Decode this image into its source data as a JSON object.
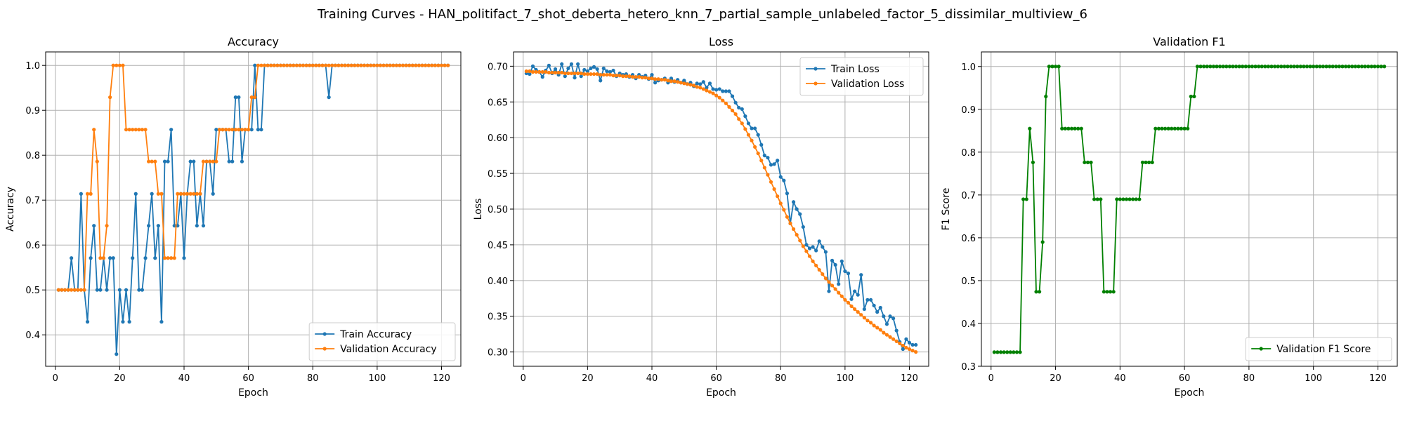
{
  "figure": {
    "suptitle": "Training Curves - HAN_politifact_7_shot_deberta_hetero_knn_7_partial_sample_unlabeled_factor_5_dissimilar_multiview_6"
  },
  "chart_data": [
    {
      "type": "line",
      "title": "Accuracy",
      "xlabel": "Epoch",
      "ylabel": "Accuracy",
      "xlim": [
        -3,
        126
      ],
      "ylim": [
        0.33,
        1.03
      ],
      "xticks": [
        0,
        20,
        40,
        60,
        80,
        100,
        120
      ],
      "yticks": [
        0.4,
        0.5,
        0.6,
        0.7,
        0.8,
        0.9,
        1.0
      ],
      "grid": true,
      "legend": "lower-right",
      "x": [
        1,
        2,
        3,
        4,
        5,
        6,
        7,
        8,
        9,
        10,
        11,
        12,
        13,
        14,
        15,
        16,
        17,
        18,
        19,
        20,
        21,
        22,
        23,
        24,
        25,
        26,
        27,
        28,
        29,
        30,
        31,
        32,
        33,
        34,
        35,
        36,
        37,
        38,
        39,
        40,
        41,
        42,
        43,
        44,
        45,
        46,
        47,
        48,
        49,
        50,
        51,
        52,
        53,
        54,
        55,
        56,
        57,
        58,
        59,
        60,
        61,
        62,
        63,
        64,
        65,
        66,
        67,
        68,
        69,
        70,
        71,
        72,
        73,
        74,
        75,
        76,
        77,
        78,
        79,
        80,
        81,
        82,
        83,
        84,
        85,
        86,
        87,
        88,
        89,
        90,
        91,
        92,
        93,
        94,
        95,
        96,
        97,
        98,
        99,
        100,
        101,
        102,
        103,
        104,
        105,
        106,
        107,
        108,
        109,
        110,
        111,
        112,
        113,
        114,
        115,
        116,
        117,
        118,
        119,
        120,
        121,
        122
      ],
      "series": [
        {
          "name": "Train Accuracy",
          "color": "#1f77b4",
          "values": [
            0.5,
            0.5,
            0.5,
            0.5,
            0.571,
            0.5,
            0.5,
            0.714,
            0.5,
            0.429,
            0.571,
            0.643,
            0.5,
            0.5,
            0.571,
            0.5,
            0.571,
            0.571,
            0.357,
            0.5,
            0.429,
            0.5,
            0.429,
            0.571,
            0.714,
            0.5,
            0.5,
            0.571,
            0.643,
            0.714,
            0.571,
            0.643,
            0.429,
            0.786,
            0.786,
            0.857,
            0.643,
            0.643,
            0.714,
            0.571,
            0.714,
            0.786,
            0.786,
            0.643,
            0.714,
            0.643,
            0.786,
            0.786,
            0.714,
            0.857,
            0.857,
            0.857,
            0.857,
            0.786,
            0.786,
            0.929,
            0.929,
            0.786,
            0.857,
            0.857,
            0.857,
            1.0,
            0.857,
            0.857,
            1.0,
            1.0,
            1.0,
            1.0,
            1.0,
            1.0,
            1.0,
            1.0,
            1.0,
            1.0,
            1.0,
            1.0,
            1.0,
            1.0,
            1.0,
            1.0,
            1.0,
            1.0,
            1.0,
            1.0,
            0.929,
            1.0,
            1.0,
            1.0,
            1.0,
            1.0,
            1.0,
            1.0,
            1.0,
            1.0,
            1.0,
            1.0,
            1.0,
            1.0,
            1.0,
            1.0,
            1.0,
            1.0,
            1.0,
            1.0,
            1.0,
            1.0,
            1.0,
            1.0,
            1.0,
            1.0,
            1.0,
            1.0,
            1.0,
            1.0,
            1.0,
            1.0,
            1.0,
            1.0,
            1.0,
            1.0,
            1.0,
            1.0
          ]
        },
        {
          "name": "Validation Accuracy",
          "color": "#ff7f0e",
          "values": [
            0.5,
            0.5,
            0.5,
            0.5,
            0.5,
            0.5,
            0.5,
            0.5,
            0.5,
            0.714,
            0.714,
            0.857,
            0.786,
            0.571,
            0.571,
            0.643,
            0.929,
            1.0,
            1.0,
            1.0,
            1.0,
            0.857,
            0.857,
            0.857,
            0.857,
            0.857,
            0.857,
            0.857,
            0.786,
            0.786,
            0.786,
            0.714,
            0.714,
            0.571,
            0.571,
            0.571,
            0.571,
            0.714,
            0.714,
            0.714,
            0.714,
            0.714,
            0.714,
            0.714,
            0.714,
            0.786,
            0.786,
            0.786,
            0.786,
            0.786,
            0.857,
            0.857,
            0.857,
            0.857,
            0.857,
            0.857,
            0.857,
            0.857,
            0.857,
            0.857,
            0.929,
            0.929,
            1.0,
            1.0,
            1.0,
            1.0,
            1.0,
            1.0,
            1.0,
            1.0,
            1.0,
            1.0,
            1.0,
            1.0,
            1.0,
            1.0,
            1.0,
            1.0,
            1.0,
            1.0,
            1.0,
            1.0,
            1.0,
            1.0,
            1.0,
            1.0,
            1.0,
            1.0,
            1.0,
            1.0,
            1.0,
            1.0,
            1.0,
            1.0,
            1.0,
            1.0,
            1.0,
            1.0,
            1.0,
            1.0,
            1.0,
            1.0,
            1.0,
            1.0,
            1.0,
            1.0,
            1.0,
            1.0,
            1.0,
            1.0,
            1.0,
            1.0,
            1.0,
            1.0,
            1.0,
            1.0,
            1.0,
            1.0,
            1.0,
            1.0,
            1.0,
            1.0
          ]
        }
      ]
    },
    {
      "type": "line",
      "title": "Loss",
      "xlabel": "Epoch",
      "ylabel": "Loss",
      "xlim": [
        -3,
        126
      ],
      "ylim": [
        0.28,
        0.72
      ],
      "xticks": [
        0,
        20,
        40,
        60,
        80,
        100,
        120
      ],
      "yticks": [
        0.3,
        0.35,
        0.4,
        0.45,
        0.5,
        0.55,
        0.6,
        0.65,
        0.7
      ],
      "grid": true,
      "legend": "top-right",
      "x": [
        1,
        2,
        3,
        4,
        5,
        6,
        7,
        8,
        9,
        10,
        11,
        12,
        13,
        14,
        15,
        16,
        17,
        18,
        19,
        20,
        21,
        22,
        23,
        24,
        25,
        26,
        27,
        28,
        29,
        30,
        31,
        32,
        33,
        34,
        35,
        36,
        37,
        38,
        39,
        40,
        41,
        42,
        43,
        44,
        45,
        46,
        47,
        48,
        49,
        50,
        51,
        52,
        53,
        54,
        55,
        56,
        57,
        58,
        59,
        60,
        61,
        62,
        63,
        64,
        65,
        66,
        67,
        68,
        69,
        70,
        71,
        72,
        73,
        74,
        75,
        76,
        77,
        78,
        79,
        80,
        81,
        82,
        83,
        84,
        85,
        86,
        87,
        88,
        89,
        90,
        91,
        92,
        93,
        94,
        95,
        96,
        97,
        98,
        99,
        100,
        101,
        102,
        103,
        104,
        105,
        106,
        107,
        108,
        109,
        110,
        111,
        112,
        113,
        114,
        115,
        116,
        117,
        118,
        119,
        120,
        121,
        122
      ],
      "series": [
        {
          "name": "Train Loss",
          "color": "#1f77b4",
          "values": [
            0.69,
            0.689,
            0.7,
            0.695,
            0.692,
            0.685,
            0.694,
            0.701,
            0.69,
            0.696,
            0.688,
            0.703,
            0.686,
            0.697,
            0.703,
            0.684,
            0.703,
            0.686,
            0.695,
            0.693,
            0.697,
            0.699,
            0.696,
            0.68,
            0.697,
            0.693,
            0.692,
            0.694,
            0.686,
            0.69,
            0.688,
            0.689,
            0.685,
            0.688,
            0.683,
            0.688,
            0.685,
            0.687,
            0.682,
            0.688,
            0.677,
            0.68,
            0.681,
            0.683,
            0.677,
            0.683,
            0.678,
            0.681,
            0.677,
            0.68,
            0.675,
            0.677,
            0.672,
            0.676,
            0.675,
            0.678,
            0.67,
            0.676,
            0.668,
            0.667,
            0.668,
            0.665,
            0.665,
            0.665,
            0.658,
            0.649,
            0.642,
            0.64,
            0.63,
            0.62,
            0.613,
            0.613,
            0.604,
            0.59,
            0.575,
            0.572,
            0.562,
            0.563,
            0.568,
            0.545,
            0.54,
            0.522,
            0.48,
            0.51,
            0.5,
            0.493,
            0.475,
            0.45,
            0.445,
            0.447,
            0.442,
            0.455,
            0.447,
            0.44,
            0.385,
            0.428,
            0.422,
            0.395,
            0.427,
            0.413,
            0.41,
            0.374,
            0.385,
            0.38,
            0.408,
            0.36,
            0.373,
            0.373,
            0.365,
            0.356,
            0.362,
            0.35,
            0.339,
            0.35,
            0.347,
            0.33,
            0.314,
            0.304,
            0.318,
            0.313,
            0.31,
            0.31
          ]
        },
        {
          "name": "Validation Loss",
          "color": "#ff7f0e",
          "values": [
            0.693,
            0.693,
            0.692,
            0.692,
            0.692,
            0.692,
            0.692,
            0.691,
            0.691,
            0.691,
            0.691,
            0.691,
            0.69,
            0.69,
            0.69,
            0.69,
            0.69,
            0.69,
            0.689,
            0.689,
            0.689,
            0.689,
            0.689,
            0.688,
            0.688,
            0.688,
            0.688,
            0.687,
            0.687,
            0.687,
            0.686,
            0.686,
            0.686,
            0.685,
            0.685,
            0.685,
            0.684,
            0.684,
            0.683,
            0.683,
            0.682,
            0.682,
            0.681,
            0.681,
            0.68,
            0.679,
            0.679,
            0.678,
            0.677,
            0.676,
            0.675,
            0.674,
            0.673,
            0.671,
            0.67,
            0.668,
            0.666,
            0.664,
            0.662,
            0.659,
            0.656,
            0.652,
            0.648,
            0.643,
            0.638,
            0.633,
            0.626,
            0.62,
            0.612,
            0.604,
            0.596,
            0.587,
            0.578,
            0.568,
            0.558,
            0.548,
            0.538,
            0.528,
            0.518,
            0.508,
            0.499,
            0.489,
            0.48,
            0.472,
            0.464,
            0.456,
            0.448,
            0.441,
            0.434,
            0.427,
            0.421,
            0.415,
            0.409,
            0.403,
            0.398,
            0.393,
            0.388,
            0.383,
            0.378,
            0.373,
            0.369,
            0.364,
            0.36,
            0.356,
            0.352,
            0.348,
            0.344,
            0.341,
            0.337,
            0.334,
            0.331,
            0.327,
            0.324,
            0.321,
            0.318,
            0.315,
            0.312,
            0.309,
            0.306,
            0.304,
            0.302,
            0.3
          ]
        }
      ]
    },
    {
      "type": "line",
      "title": "Validation F1",
      "xlabel": "Epoch",
      "ylabel": "F1 Score",
      "xlim": [
        -3,
        126
      ],
      "ylim": [
        0.3,
        1.034
      ],
      "xticks": [
        0,
        20,
        40,
        60,
        80,
        100,
        120
      ],
      "yticks": [
        0.3,
        0.4,
        0.5,
        0.6,
        0.7,
        0.8,
        0.9,
        1.0
      ],
      "grid": true,
      "legend": "lower-right",
      "x": [
        1,
        2,
        3,
        4,
        5,
        6,
        7,
        8,
        9,
        10,
        11,
        12,
        13,
        14,
        15,
        16,
        17,
        18,
        19,
        20,
        21,
        22,
        23,
        24,
        25,
        26,
        27,
        28,
        29,
        30,
        31,
        32,
        33,
        34,
        35,
        36,
        37,
        38,
        39,
        40,
        41,
        42,
        43,
        44,
        45,
        46,
        47,
        48,
        49,
        50,
        51,
        52,
        53,
        54,
        55,
        56,
        57,
        58,
        59,
        60,
        61,
        62,
        63,
        64,
        65,
        66,
        67,
        68,
        69,
        70,
        71,
        72,
        73,
        74,
        75,
        76,
        77,
        78,
        79,
        80,
        81,
        82,
        83,
        84,
        85,
        86,
        87,
        88,
        89,
        90,
        91,
        92,
        93,
        94,
        95,
        96,
        97,
        98,
        99,
        100,
        101,
        102,
        103,
        104,
        105,
        106,
        107,
        108,
        109,
        110,
        111,
        112,
        113,
        114,
        115,
        116,
        117,
        118,
        119,
        120,
        121,
        122
      ],
      "series": [
        {
          "name": "Validation F1 Score",
          "color": "#008000",
          "values": [
            0.333,
            0.333,
            0.333,
            0.333,
            0.333,
            0.333,
            0.333,
            0.333,
            0.333,
            0.69,
            0.69,
            0.855,
            0.776,
            0.474,
            0.474,
            0.59,
            0.93,
            1.0,
            1.0,
            1.0,
            1.0,
            0.855,
            0.855,
            0.855,
            0.855,
            0.855,
            0.855,
            0.855,
            0.776,
            0.776,
            0.776,
            0.69,
            0.69,
            0.69,
            0.474,
            0.474,
            0.474,
            0.474,
            0.69,
            0.69,
            0.69,
            0.69,
            0.69,
            0.69,
            0.69,
            0.69,
            0.776,
            0.776,
            0.776,
            0.776,
            0.855,
            0.855,
            0.855,
            0.855,
            0.855,
            0.855,
            0.855,
            0.855,
            0.855,
            0.855,
            0.855,
            0.93,
            0.93,
            1.0,
            1.0,
            1.0,
            1.0,
            1.0,
            1.0,
            1.0,
            1.0,
            1.0,
            1.0,
            1.0,
            1.0,
            1.0,
            1.0,
            1.0,
            1.0,
            1.0,
            1.0,
            1.0,
            1.0,
            1.0,
            1.0,
            1.0,
            1.0,
            1.0,
            1.0,
            1.0,
            1.0,
            1.0,
            1.0,
            1.0,
            1.0,
            1.0,
            1.0,
            1.0,
            1.0,
            1.0,
            1.0,
            1.0,
            1.0,
            1.0,
            1.0,
            1.0,
            1.0,
            1.0,
            1.0,
            1.0,
            1.0,
            1.0,
            1.0,
            1.0,
            1.0,
            1.0,
            1.0,
            1.0,
            1.0,
            1.0,
            1.0,
            1.0
          ]
        }
      ]
    }
  ]
}
